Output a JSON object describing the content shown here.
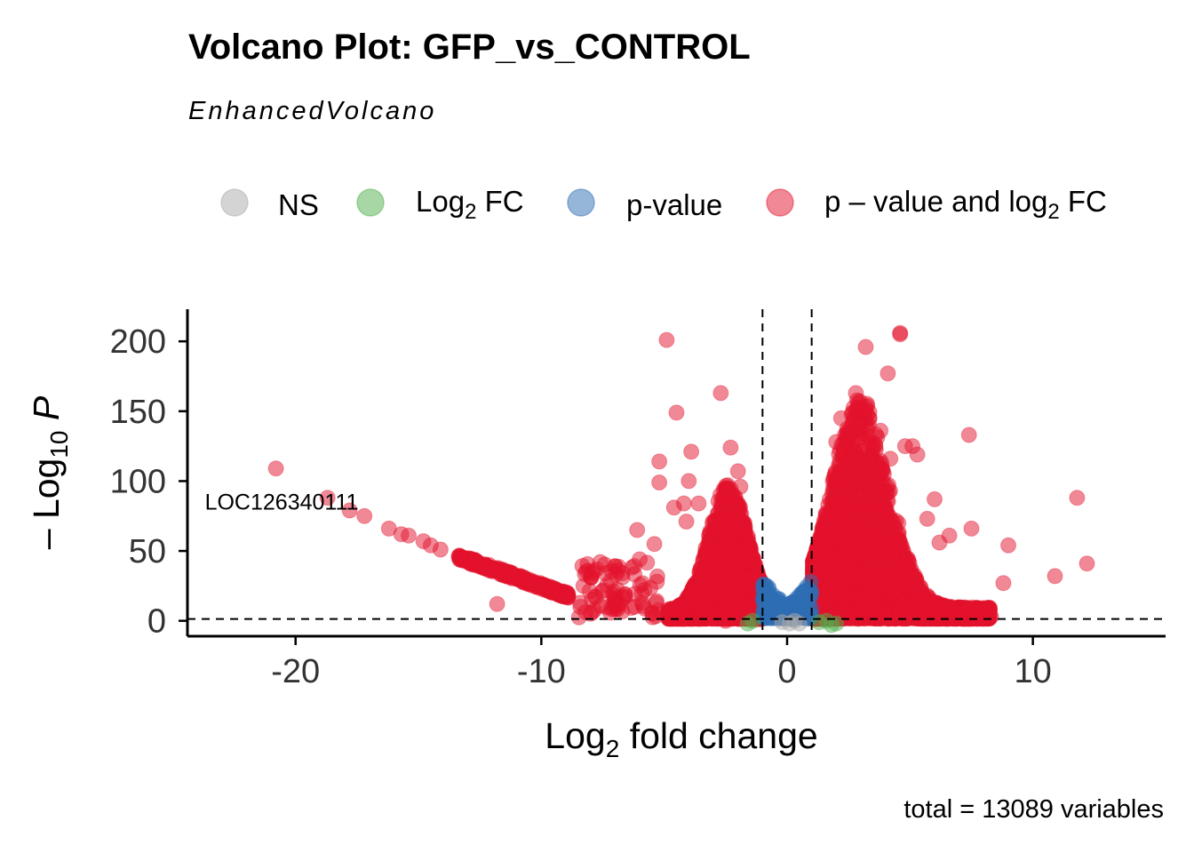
{
  "chart_data": {
    "type": "scatter",
    "title": "Volcano Plot: GFP_vs_CONTROL",
    "subtitle": "EnhancedVolcano",
    "caption": "total = 13089 variables",
    "xlabel": {
      "prefix": "Log",
      "sub": "2",
      "suffix": " fold change"
    },
    "ylabel": {
      "prefix": "– Log",
      "sub": "10",
      "suffix": " P"
    },
    "xlim": [
      -24.4,
      15.4
    ],
    "ylim": [
      -11,
      223
    ],
    "xticks": [
      -20,
      -10,
      0,
      10
    ],
    "yticks": [
      0,
      50,
      100,
      150,
      200
    ],
    "thresholds": {
      "fc_cutoff": [
        -1,
        1
      ],
      "p_line": 1.3
    },
    "legend": [
      {
        "key": "ns",
        "label": "NS",
        "color": "#a9a9a9"
      },
      {
        "key": "fc",
        "label": "Log",
        "sub": "2",
        "label_suffix": " FC",
        "color": "#4daf4a"
      },
      {
        "key": "p",
        "label": "p-value",
        "color": "#2e6db4"
      },
      {
        "key": "both",
        "label": "p – value and log",
        "sub": "2",
        "label_suffix": " FC",
        "color": "#e3122b"
      }
    ],
    "annotations": [
      {
        "text": "LOC126340111",
        "x": -20.8,
        "y": 109
      }
    ],
    "series": [
      {
        "name": "p – value and log2 FC",
        "color": "#e3122b",
        "points": [
          [
            -20.8,
            109
          ],
          [
            -18.7,
            88
          ],
          [
            -17.8,
            79
          ],
          [
            -17.2,
            75
          ],
          [
            -16.2,
            66
          ],
          [
            -15.7,
            62
          ],
          [
            -15.4,
            61
          ],
          [
            -14.8,
            57
          ],
          [
            -14.5,
            54
          ],
          [
            -14.1,
            51
          ],
          [
            -13.3,
            46
          ],
          [
            -12.7,
            43
          ],
          [
            -11.8,
            12
          ],
          [
            -7.6,
            42
          ],
          [
            -6.9,
            11
          ],
          [
            -6.1,
            65
          ],
          [
            -5.2,
            114
          ],
          [
            -5.2,
            99
          ],
          [
            -4.9,
            201
          ],
          [
            -4.6,
            81
          ],
          [
            -4.5,
            149
          ],
          [
            -4.2,
            84
          ],
          [
            -4.1,
            71
          ],
          [
            -4.0,
            100
          ],
          [
            -3.9,
            121
          ],
          [
            -3.6,
            84
          ],
          [
            -2.7,
            163
          ],
          [
            -2.3,
            124
          ],
          [
            -2.0,
            107
          ],
          [
            -1.9,
            96
          ],
          [
            -5.4,
            55
          ],
          [
            -5.3,
            28
          ],
          [
            -6.0,
            44
          ],
          [
            -5.8,
            22
          ],
          [
            -8.0,
            5
          ],
          [
            -2.5,
            0
          ],
          [
            -1.6,
            3
          ],
          [
            11.8,
            88
          ],
          [
            12.2,
            41
          ],
          [
            10.9,
            32
          ],
          [
            9.0,
            54
          ],
          [
            8.8,
            27
          ],
          [
            8.3,
            3
          ],
          [
            7.4,
            133
          ],
          [
            7.5,
            66
          ],
          [
            6.0,
            87
          ],
          [
            5.7,
            73
          ],
          [
            6.2,
            56
          ],
          [
            5.1,
            125
          ],
          [
            4.6,
            206
          ],
          [
            4.6,
            205
          ],
          [
            4.1,
            177
          ],
          [
            3.2,
            196
          ],
          [
            2.8,
            163
          ],
          [
            2.2,
            145
          ],
          [
            2.0,
            128
          ],
          [
            4.2,
            116
          ],
          [
            3.8,
            136
          ],
          [
            4.8,
            125
          ],
          [
            5.3,
            119
          ],
          [
            6.6,
            61
          ]
        ]
      },
      {
        "name": "Log2 FC",
        "color": "#4daf4a",
        "points": [
          [
            -1.6,
            -2
          ],
          [
            -1.4,
            0
          ],
          [
            1.3,
            -1
          ],
          [
            1.6,
            0
          ],
          [
            2.0,
            -2
          ],
          [
            1.8,
            -3
          ]
        ]
      },
      {
        "name": "NS",
        "color": "#a9a9a9",
        "points": [
          [
            -0.2,
            -1
          ],
          [
            0.1,
            -2
          ],
          [
            0.3,
            0
          ],
          [
            0.5,
            -2
          ]
        ]
      }
    ]
  }
}
